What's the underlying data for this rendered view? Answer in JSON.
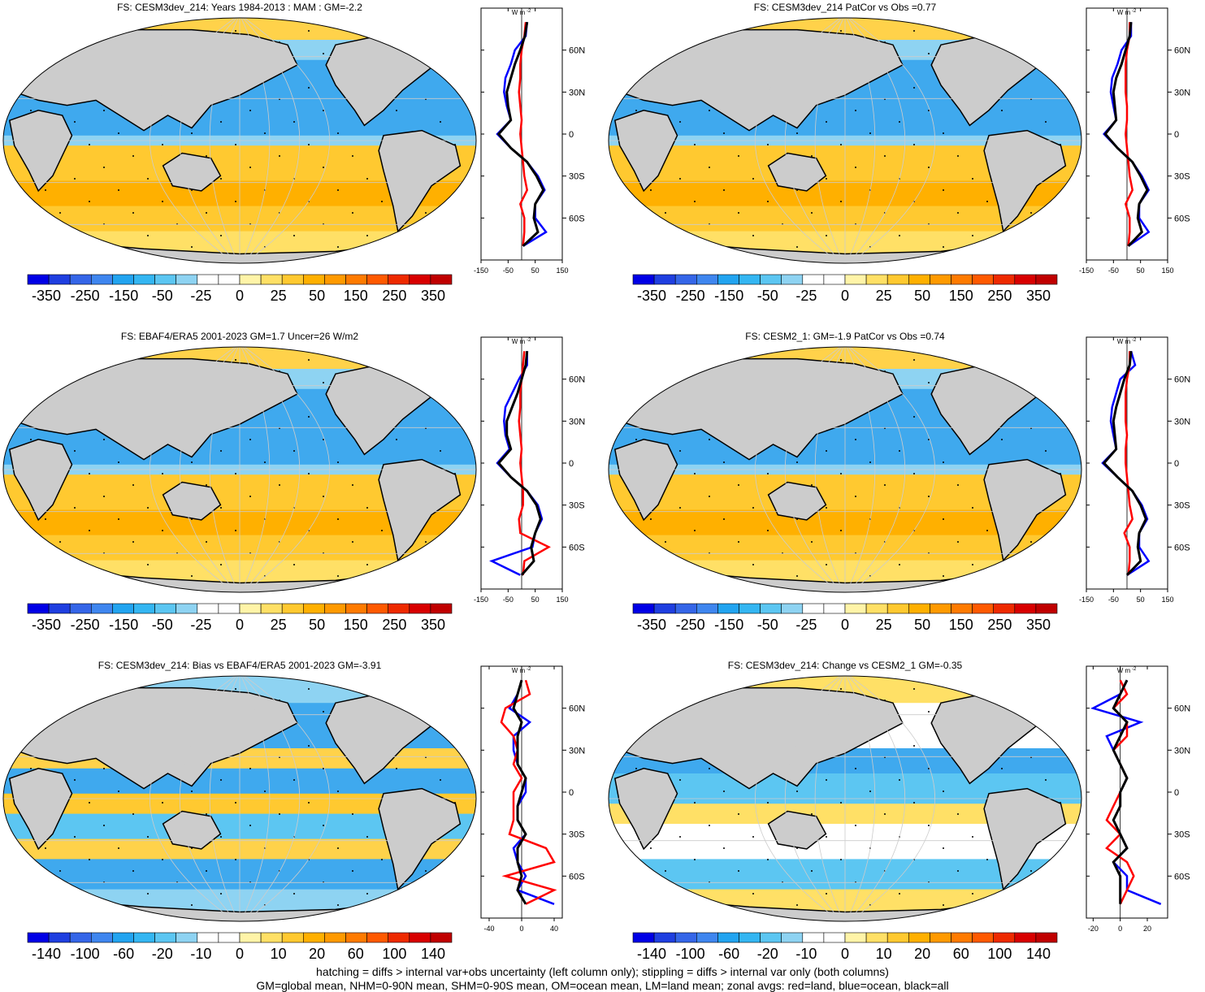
{
  "figure": {
    "footer_line1": "hatching = diffs > internal var+obs uncertainty (left column only); stippling = diffs > internal var only (both columns)",
    "footer_line2": "GM=global mean, NHM=0-90N mean, SHM=0-90S mean, OM=ocean mean, LM=land mean; zonal avgs: red=land, blue=ocean, black=all",
    "colors": {
      "land": "#cccccc",
      "ocean_line": "#0000ff",
      "land_line": "#ff0000",
      "all_line": "#000000"
    },
    "zonal_unit": "W m",
    "zonal_unit_sup": "-2",
    "lat_labels": [
      "60N",
      "30N",
      "0",
      "30S",
      "60S"
    ]
  },
  "chart_data": [
    {
      "type": "heatmap",
      "title": "FS: CESM3dev_214: Years 1984-2013 : MAM : GM=-2.2",
      "colorbar_labels": [
        "-350",
        "-250",
        "-150",
        "-50",
        "-25",
        "0",
        "25",
        "50",
        "150",
        "250",
        "350"
      ],
      "zonal_xticks": [
        "-150",
        "-50",
        "50",
        "150"
      ],
      "zonal_xlim": [
        -150,
        150
      ],
      "pattern": "abs",
      "zonal_series": {
        "lat": [
          80,
          70,
          60,
          50,
          40,
          30,
          20,
          10,
          0,
          -10,
          -20,
          -30,
          -40,
          -50,
          -60,
          -70,
          -80
        ],
        "all": [
          20,
          12,
          -5,
          -25,
          -40,
          -55,
          -50,
          -40,
          -85,
          -40,
          20,
          55,
          80,
          50,
          45,
          60,
          5
        ],
        "ocean": [
          20,
          15,
          -25,
          -40,
          -60,
          -65,
          -55,
          -40,
          -90,
          -40,
          20,
          60,
          85,
          50,
          50,
          90,
          5
        ],
        "land": [
          15,
          10,
          0,
          -5,
          -5,
          -10,
          -5,
          0,
          -5,
          0,
          5,
          10,
          20,
          -5,
          10,
          10,
          5
        ]
      }
    },
    {
      "type": "heatmap",
      "title": "FS: CESM3dev_214 PatCor vs Obs =0.77",
      "colorbar_labels": [
        "-350",
        "-250",
        "-150",
        "-50",
        "-25",
        "0",
        "25",
        "50",
        "150",
        "250",
        "350"
      ],
      "zonal_xticks": [
        "-150",
        "-50",
        "50",
        "150"
      ],
      "zonal_xlim": [
        -150,
        150
      ],
      "pattern": "abs",
      "zonal_series": {
        "lat": [
          80,
          70,
          60,
          50,
          40,
          30,
          20,
          10,
          0,
          -10,
          -20,
          -30,
          -40,
          -50,
          -60,
          -70,
          -80
        ],
        "all": [
          15,
          10,
          -5,
          -20,
          -40,
          -50,
          -45,
          -40,
          -80,
          -35,
          20,
          50,
          75,
          45,
          40,
          55,
          5
        ],
        "ocean": [
          15,
          15,
          -20,
          -35,
          -55,
          -60,
          -50,
          -40,
          -85,
          -35,
          20,
          55,
          80,
          45,
          45,
          80,
          5
        ],
        "land": [
          10,
          10,
          0,
          -5,
          -5,
          -5,
          0,
          0,
          -5,
          0,
          5,
          10,
          20,
          -5,
          10,
          10,
          5
        ]
      }
    },
    {
      "type": "heatmap",
      "title": "FS: EBAF4/ERA5 2001-2023 GM=1.7 Uncer=26 W/m2",
      "colorbar_labels": [
        "-350",
        "-250",
        "-150",
        "-50",
        "-25",
        "0",
        "25",
        "50",
        "150",
        "250",
        "350"
      ],
      "zonal_xticks": [
        "-150",
        "-50",
        "50",
        "150"
      ],
      "zonal_xlim": [
        -150,
        150
      ],
      "pattern": "abs",
      "zonal_series": {
        "lat": [
          80,
          70,
          60,
          50,
          40,
          30,
          20,
          10,
          0,
          -10,
          -20,
          -30,
          -40,
          -50,
          -60,
          -70,
          -80
        ],
        "all": [
          20,
          15,
          0,
          -15,
          -35,
          -55,
          -55,
          -40,
          -85,
          -40,
          20,
          55,
          70,
          50,
          35,
          45,
          0
        ],
        "ocean": [
          20,
          20,
          -10,
          -35,
          -60,
          -65,
          -60,
          -45,
          -90,
          -40,
          20,
          60,
          75,
          50,
          40,
          -110,
          -5
        ],
        "land": [
          10,
          5,
          0,
          -5,
          -5,
          -10,
          -5,
          0,
          -5,
          0,
          5,
          5,
          -10,
          -5,
          100,
          10,
          5
        ]
      }
    },
    {
      "type": "heatmap",
      "title": "FS: CESM2_1: GM=-1.9 PatCor vs Obs =0.74",
      "colorbar_labels": [
        "-350",
        "-250",
        "-150",
        "-50",
        "-25",
        "0",
        "25",
        "50",
        "150",
        "250",
        "350"
      ],
      "zonal_xticks": [
        "-150",
        "-50",
        "50",
        "150"
      ],
      "zonal_xlim": [
        -150,
        150
      ],
      "pattern": "abs",
      "zonal_series": {
        "lat": [
          80,
          70,
          60,
          50,
          40,
          30,
          20,
          10,
          0,
          -10,
          -20,
          -30,
          -40,
          -50,
          -60,
          -70,
          -80
        ],
        "all": [
          15,
          10,
          -10,
          -25,
          -40,
          -50,
          -45,
          -40,
          -85,
          -35,
          20,
          50,
          70,
          45,
          40,
          50,
          0
        ],
        "ocean": [
          15,
          30,
          -25,
          -40,
          -55,
          -60,
          -50,
          -40,
          -90,
          -35,
          20,
          55,
          75,
          45,
          45,
          80,
          0
        ],
        "land": [
          10,
          10,
          0,
          -5,
          -5,
          -5,
          0,
          -5,
          -5,
          0,
          5,
          10,
          20,
          -10,
          10,
          10,
          5
        ]
      }
    },
    {
      "type": "heatmap",
      "title": "FS: CESM3dev_214: Bias vs EBAF4/ERA5 2001-2023 GM=-3.91",
      "colorbar_labels": [
        "-140",
        "-100",
        "-60",
        "-20",
        "-10",
        "0",
        "10",
        "20",
        "60",
        "100",
        "140"
      ],
      "zonal_xticks": [
        "-40",
        "0",
        "40"
      ],
      "zonal_xlim": [
        -50,
        50
      ],
      "pattern": "bias",
      "zonal_series": {
        "lat": [
          80,
          70,
          60,
          50,
          40,
          30,
          20,
          10,
          0,
          -10,
          -20,
          -30,
          -40,
          -50,
          -60,
          -70,
          -80
        ],
        "all": [
          0,
          -5,
          -10,
          0,
          -5,
          -5,
          -5,
          5,
          0,
          -5,
          -5,
          5,
          -5,
          -5,
          0,
          -5,
          5
        ],
        "ocean": [
          0,
          -5,
          -15,
          10,
          -10,
          -10,
          -5,
          5,
          5,
          -5,
          -5,
          5,
          -10,
          -5,
          5,
          -5,
          40
        ],
        "land": [
          5,
          10,
          -20,
          -25,
          -10,
          -5,
          -10,
          0,
          -10,
          -10,
          -10,
          -15,
          30,
          40,
          -20,
          40,
          5
        ]
      }
    },
    {
      "type": "heatmap",
      "title": "FS: CESM3dev_214: Change vs CESM2_1 GM=-0.35",
      "colorbar_labels": [
        "-140",
        "-100",
        "-60",
        "-20",
        "-10",
        "0",
        "10",
        "20",
        "60",
        "100",
        "140"
      ],
      "zonal_xticks": [
        "-20",
        "0",
        "20"
      ],
      "zonal_xlim": [
        -25,
        35
      ],
      "pattern": "change",
      "zonal_series": {
        "lat": [
          80,
          70,
          60,
          50,
          40,
          30,
          20,
          10,
          0,
          -10,
          -20,
          -30,
          -40,
          -50,
          -60,
          -70,
          -80
        ],
        "all": [
          5,
          0,
          -5,
          5,
          0,
          -5,
          0,
          5,
          0,
          0,
          -5,
          0,
          5,
          -5,
          0,
          0,
          0
        ],
        "ocean": [
          5,
          0,
          -20,
          15,
          -10,
          -5,
          0,
          5,
          0,
          0,
          -5,
          0,
          5,
          -5,
          5,
          5,
          30
        ],
        "land": [
          0,
          5,
          -5,
          5,
          5,
          -5,
          0,
          5,
          0,
          -5,
          -10,
          0,
          -10,
          5,
          10,
          5,
          0
        ]
      }
    }
  ]
}
